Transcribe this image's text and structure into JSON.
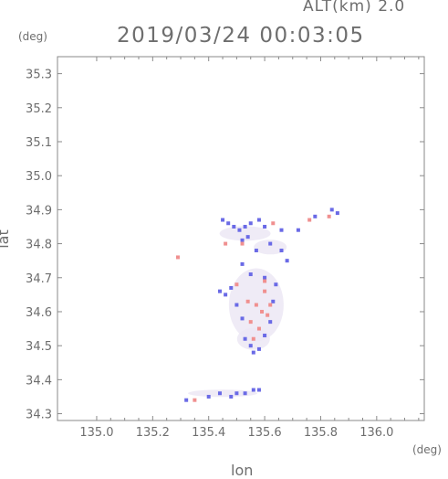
{
  "header": {
    "altitude": "ALT(km)  2.0",
    "timestamp": "2019/03/24 00:03:05"
  },
  "chart_data": {
    "type": "scatter",
    "title": "2019/03/24 00:03:05",
    "subtitle": "ALT(km)  2.0",
    "xlabel": "lon",
    "ylabel": "lat",
    "x_unit": "(deg)",
    "y_unit": "(deg)",
    "xlim": [
      134.86,
      136.17
    ],
    "ylim": [
      34.28,
      35.35
    ],
    "xticks": [
      "135.0",
      "135.2",
      "135.4",
      "135.6",
      "135.8",
      "136.0"
    ],
    "yticks": [
      "34.3",
      "34.4",
      "34.5",
      "34.6",
      "34.7",
      "34.8",
      "34.9",
      "35.0",
      "35.1",
      "35.2",
      "35.3"
    ],
    "grid": false,
    "series": [
      {
        "color": "#6a6ae6",
        "points": [
          [
            135.45,
            34.87
          ],
          [
            135.47,
            34.86
          ],
          [
            135.49,
            34.85
          ],
          [
            135.51,
            34.84
          ],
          [
            135.53,
            34.85
          ],
          [
            135.55,
            34.86
          ],
          [
            135.58,
            34.87
          ],
          [
            135.6,
            34.85
          ],
          [
            135.52,
            34.81
          ],
          [
            135.54,
            34.82
          ],
          [
            135.66,
            34.84
          ],
          [
            135.78,
            34.88
          ],
          [
            135.84,
            34.9
          ],
          [
            135.86,
            34.89
          ],
          [
            135.72,
            34.84
          ],
          [
            135.44,
            34.66
          ],
          [
            135.46,
            34.65
          ],
          [
            135.48,
            34.67
          ],
          [
            135.5,
            34.62
          ],
          [
            135.52,
            34.58
          ],
          [
            135.53,
            34.52
          ],
          [
            135.55,
            34.5
          ],
          [
            135.56,
            34.48
          ],
          [
            135.58,
            34.49
          ],
          [
            135.6,
            34.53
          ],
          [
            135.62,
            34.57
          ],
          [
            135.63,
            34.63
          ],
          [
            135.64,
            34.68
          ],
          [
            135.6,
            34.7
          ],
          [
            135.55,
            34.71
          ],
          [
            135.52,
            34.74
          ],
          [
            135.57,
            34.78
          ],
          [
            135.62,
            34.8
          ],
          [
            135.66,
            34.78
          ],
          [
            135.68,
            34.75
          ],
          [
            135.32,
            34.34
          ],
          [
            135.4,
            34.35
          ],
          [
            135.44,
            34.36
          ],
          [
            135.48,
            34.35
          ],
          [
            135.5,
            34.36
          ],
          [
            135.53,
            34.36
          ],
          [
            135.56,
            34.37
          ],
          [
            135.58,
            34.37
          ]
        ]
      },
      {
        "color": "#f09090",
        "points": [
          [
            135.29,
            34.76
          ],
          [
            135.52,
            34.8
          ],
          [
            135.57,
            34.62
          ],
          [
            135.59,
            34.6
          ],
          [
            135.61,
            34.59
          ],
          [
            135.55,
            34.57
          ],
          [
            135.58,
            34.55
          ],
          [
            135.54,
            34.63
          ],
          [
            135.6,
            34.66
          ],
          [
            135.62,
            34.62
          ],
          [
            135.5,
            34.68
          ],
          [
            135.56,
            34.52
          ],
          [
            135.76,
            34.87
          ],
          [
            135.83,
            34.88
          ],
          [
            135.35,
            34.34
          ],
          [
            135.46,
            34.8
          ],
          [
            135.63,
            34.86
          ],
          [
            135.6,
            34.69
          ]
        ]
      }
    ]
  }
}
